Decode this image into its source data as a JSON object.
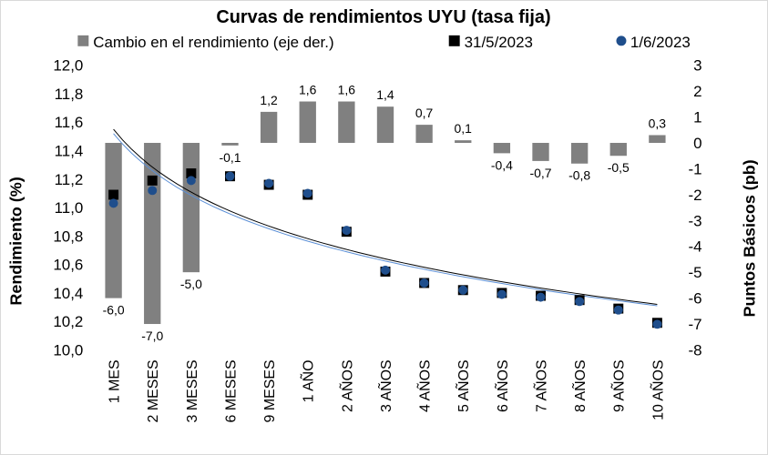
{
  "chart_data": {
    "type": "bar",
    "title": "Curvas de rendimientos UYU (tasa fija)",
    "categories": [
      "1 MES",
      "2 MESES",
      "3 MESES",
      "6 MESES",
      "9 MESES",
      "1 AÑO",
      "2 AÑOS",
      "3 AÑOS",
      "4 AÑOS",
      "5 AÑOS",
      "6 AÑOS",
      "7 AÑOS",
      "8 AÑOS",
      "9 AÑOS",
      "10 AÑOS"
    ],
    "ylabel": "Rendimiento (%)",
    "y2label": "Puntos Básicos (pb)",
    "ylim": [
      10.0,
      12.0
    ],
    "y2lim": [
      -8,
      3
    ],
    "yticks": [
      "10,0",
      "10,2",
      "10,4",
      "10,6",
      "10,8",
      "11,0",
      "11,2",
      "11,4",
      "11,6",
      "11,8",
      "12,0"
    ],
    "y2ticks": [
      "-8",
      "-7",
      "-6",
      "-5",
      "-4",
      "-3",
      "-2",
      "-1",
      "0",
      "1",
      "2",
      "3"
    ],
    "series": [
      {
        "name": "Cambio en el rendimiento (eje der.)",
        "kind": "bar",
        "axis": "right",
        "color": "#808080",
        "values": [
          -6.0,
          -7.0,
          -5.0,
          -0.1,
          1.2,
          1.6,
          1.6,
          1.4,
          0.7,
          0.1,
          -0.4,
          -0.7,
          -0.8,
          -0.5,
          0.3
        ],
        "labels": [
          "-6,0",
          "-7,0",
          "-5,0",
          "-0,1",
          "1,2",
          "1,6",
          "1,6",
          "1,4",
          "0,7",
          "0,1",
          "-0,4",
          "-0,7",
          "-0,8",
          "-0,5",
          "0,3"
        ]
      },
      {
        "name": "31/5/2023",
        "kind": "marker-square",
        "axis": "left",
        "color": "#000000",
        "values": [
          11.09,
          11.19,
          11.24,
          11.22,
          11.16,
          11.09,
          10.83,
          10.55,
          10.47,
          10.42,
          10.4,
          10.38,
          10.35,
          10.29,
          10.19
        ]
      },
      {
        "name": "1/6/2023",
        "kind": "marker-circle",
        "axis": "left",
        "color": "#1f4e8c",
        "values": [
          11.03,
          11.12,
          11.19,
          11.22,
          11.17,
          11.1,
          10.84,
          10.56,
          10.47,
          10.42,
          10.39,
          10.37,
          10.34,
          10.28,
          10.18
        ]
      }
    ],
    "trendlines": [
      {
        "series": "31/5/2023",
        "color": "#000000",
        "y_at_1_MES": 11.55,
        "y_at_10_AÑOS": 10.32
      },
      {
        "series": "1/6/2023",
        "color": "#5b8fd6",
        "y_at_1_MES": 11.52,
        "y_at_10_AÑOS": 10.31
      }
    ],
    "legend": "top"
  }
}
